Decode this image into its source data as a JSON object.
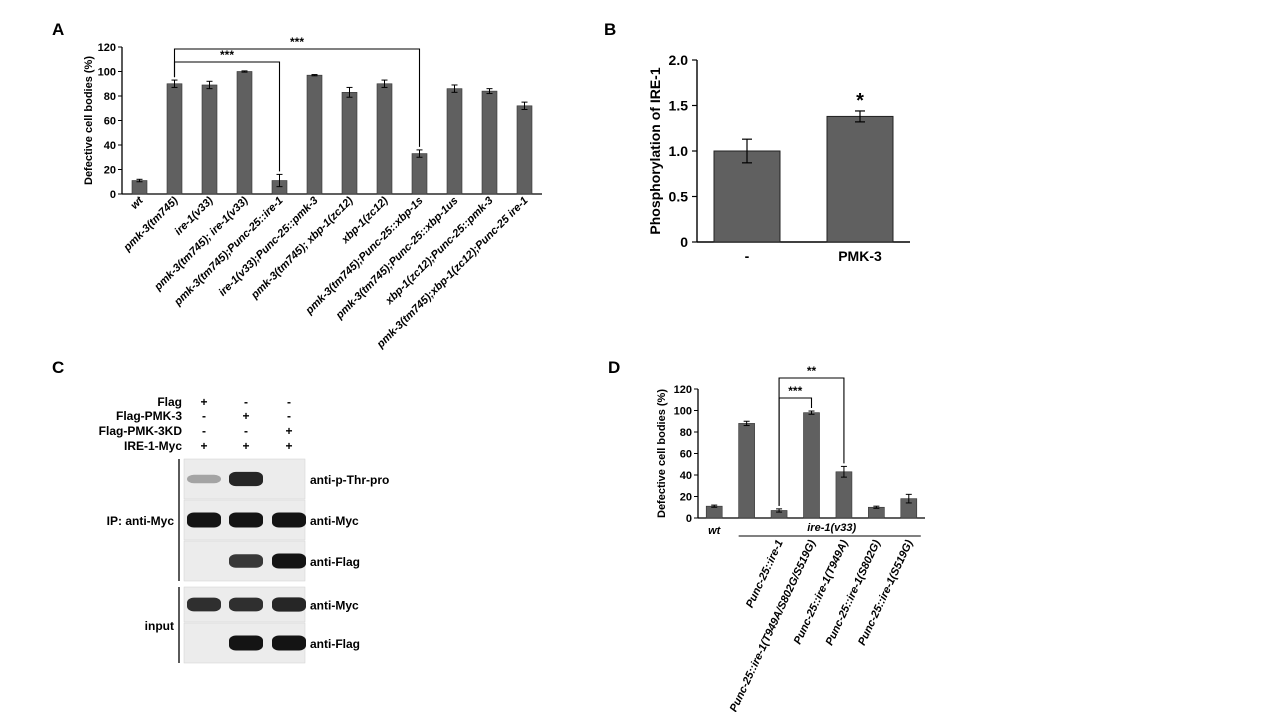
{
  "panels": {
    "A": {
      "letter": "A",
      "chart_data": {
        "type": "bar",
        "ylabel": "Defective cell bodies (%)",
        "ylim": [
          0,
          120
        ],
        "yticks": [
          0,
          20,
          40,
          60,
          80,
          100,
          120
        ],
        "categories": [
          "wt",
          "pmk-3(tm745)",
          "ire-1(v33)",
          "pmk-3(tm745); ire-1(v33)",
          "pmk-3(tm745);Punc-25::ire-1",
          "ire-1(v33);Punc-25::pmk-3",
          "pmk-3(tm745); xbp-1(zc12)",
          "xbp-1(zc12)",
          "pmk-3(tm745);Punc-25::xbp-1s",
          "pmk-3(tm745);Punc-25::xbp-1us",
          "xbp-1(zc12);Punc-25::pmk-3",
          "pmk-3(tm745);xbp-1(zc12);Punc-25 ire-1"
        ],
        "values": [
          11,
          90,
          89,
          100,
          11,
          97,
          83,
          90,
          33,
          86,
          84,
          72
        ],
        "errors": [
          1,
          3,
          3,
          0.5,
          5,
          0.5,
          4,
          3,
          3,
          3,
          2,
          3
        ],
        "significance": [
          {
            "from": 1,
            "to": 4,
            "label": "***"
          },
          {
            "from": 1,
            "to": 8,
            "label": "***"
          }
        ]
      }
    },
    "B": {
      "letter": "B",
      "chart_data": {
        "type": "bar",
        "ylabel": "Phosphorylation of IRE-1",
        "ylim": [
          0,
          2.0
        ],
        "yticks": [
          "0",
          "0.5",
          "1.0",
          "1.5",
          "2.0"
        ],
        "categories": [
          "-",
          "PMK-3"
        ],
        "values": [
          1.0,
          1.38
        ],
        "errors": [
          0.13,
          0.06
        ],
        "annotations": [
          "",
          "*"
        ]
      }
    },
    "C": {
      "letter": "C",
      "conditions": [
        {
          "label": "Flag",
          "marks": [
            "+",
            "-",
            "-"
          ]
        },
        {
          "label": "Flag-PMK-3",
          "marks": [
            "-",
            "+",
            "-"
          ]
        },
        {
          "label": "Flag-PMK-3KD",
          "marks": [
            "-",
            "-",
            "+"
          ]
        },
        {
          "label": "IRE-1-Myc",
          "marks": [
            "+",
            "+",
            "+"
          ]
        }
      ],
      "group_ip": "IP: anti-Myc",
      "group_input": "input",
      "blots": [
        {
          "label": "anti-p-Thr-pro",
          "bands": [
            0.2,
            0.9,
            0.0
          ]
        },
        {
          "label": "anti-Myc",
          "bands": [
            1.0,
            1.0,
            1.0
          ]
        },
        {
          "label": "anti-Flag",
          "bands": [
            0.0,
            0.8,
            1.0
          ]
        },
        {
          "label": "anti-Myc",
          "bands": [
            0.85,
            0.85,
            0.9
          ]
        },
        {
          "label": "anti-Flag",
          "bands": [
            0.0,
            1.0,
            1.0
          ]
        }
      ]
    },
    "D": {
      "letter": "D",
      "chart_data": {
        "type": "bar",
        "ylabel": "Defective cell bodies (%)",
        "ylim": [
          0,
          120
        ],
        "yticks": [
          0,
          20,
          40,
          60,
          80,
          100,
          120
        ],
        "categories": [
          "wt",
          "",
          "Punc-25::ire-1",
          "Punc-25::ire-1(T949A/S802G/S519G)",
          "Punc-25::ire-1(T949A)",
          "Punc-25::ire-1(S802G)",
          "Punc-25::ire-1(S519G)"
        ],
        "values": [
          11,
          88,
          7,
          98,
          43,
          10,
          18
        ],
        "errors": [
          1,
          2,
          1.5,
          1.5,
          5,
          1,
          4
        ],
        "group_label": "ire-1(v33)",
        "significance": [
          {
            "from": 2,
            "to": 3,
            "label": "***"
          },
          {
            "from": 2,
            "to": 4,
            "label": "**"
          }
        ]
      }
    }
  }
}
